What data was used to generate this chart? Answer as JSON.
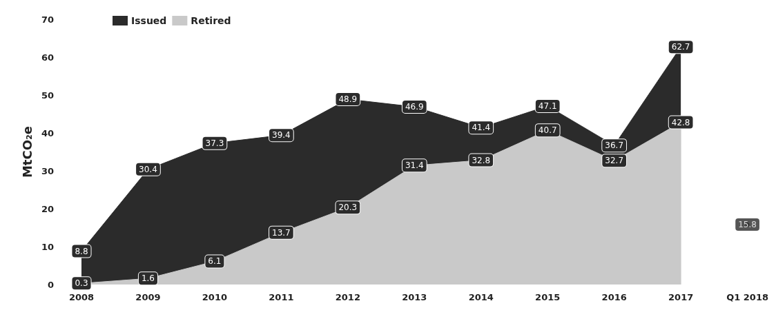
{
  "chart_data": {
    "type": "area",
    "ylabel": "MtCO₂e",
    "categories": [
      "2008",
      "2009",
      "2010",
      "2011",
      "2012",
      "2013",
      "2014",
      "2015",
      "2016",
      "2017",
      "Q1 2018"
    ],
    "series": [
      {
        "name": "Issued",
        "color": "#2b2b2b",
        "values": [
          8.8,
          30.4,
          37.3,
          39.4,
          48.9,
          46.9,
          41.4,
          47.1,
          36.7,
          62.7,
          null
        ]
      },
      {
        "name": "Retired",
        "color": "#c9c9c9",
        "values": [
          0.3,
          1.6,
          6.1,
          13.7,
          20.3,
          31.4,
          32.8,
          40.7,
          32.7,
          42.8,
          null
        ]
      },
      {
        "type": "scatter",
        "color": "#2b2b2b",
        "values": [
          null,
          null,
          null,
          null,
          null,
          null,
          null,
          null,
          null,
          null,
          15.8
        ]
      }
    ],
    "ylim": [
      0,
      70
    ],
    "yticks": [
      0,
      10,
      20,
      30,
      40,
      50,
      60,
      70
    ],
    "grid": false,
    "legend": "top left",
    "data_labels": true
  }
}
